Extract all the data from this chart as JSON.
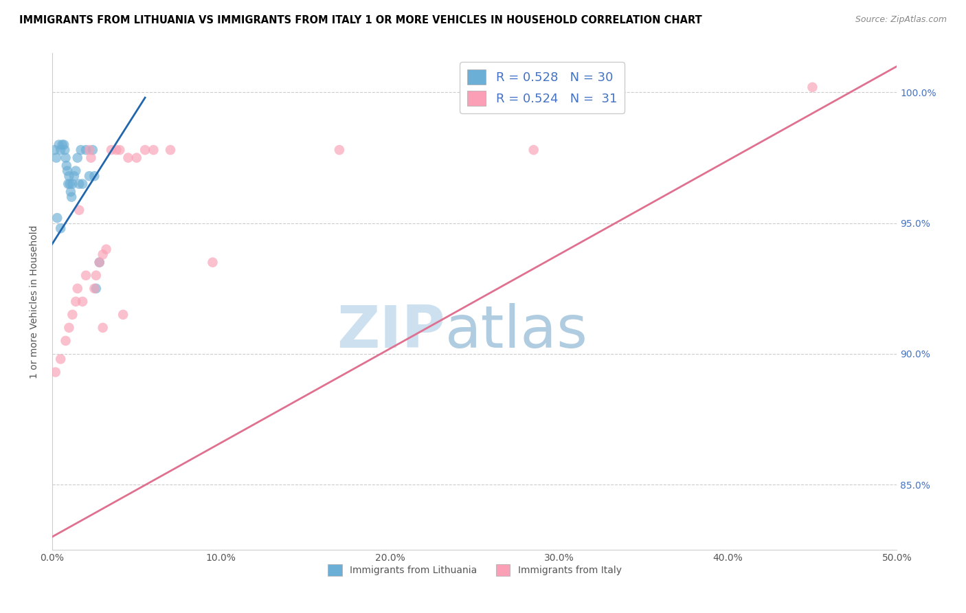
{
  "title": "IMMIGRANTS FROM LITHUANIA VS IMMIGRANTS FROM ITALY 1 OR MORE VEHICLES IN HOUSEHOLD CORRELATION CHART",
  "source": "Source: ZipAtlas.com",
  "ylabel": "1 or more Vehicles in Household",
  "xlim": [
    0.0,
    50.0
  ],
  "ylim": [
    82.5,
    101.5
  ],
  "xticklabels": [
    "0.0%",
    "10.0%",
    "20.0%",
    "30.0%",
    "40.0%",
    "50.0%"
  ],
  "xtick_vals": [
    0,
    10,
    20,
    30,
    40,
    50
  ],
  "ytick_positions": [
    85.0,
    90.0,
    95.0,
    100.0
  ],
  "ytick_labels": [
    "85.0%",
    "90.0%",
    "95.0%",
    "100.0%"
  ],
  "legend_r_blue": "R = 0.528",
  "legend_n_blue": "N = 30",
  "legend_r_pink": "R = 0.524",
  "legend_n_pink": "N = 31",
  "blue_color": "#6baed6",
  "pink_color": "#fa9fb5",
  "blue_line_color": "#2166ac",
  "pink_line_color": "#e07090",
  "watermark_zip_color": "#cce0f0",
  "watermark_atlas_color": "#b0cce0",
  "blue_line_x": [
    0.0,
    5.5
  ],
  "blue_line_y": [
    94.2,
    99.8
  ],
  "pink_line_x": [
    0.0,
    50.0
  ],
  "pink_line_y": [
    83.0,
    101.0
  ],
  "lithuania_x": [
    0.15,
    0.25,
    0.4,
    0.5,
    0.6,
    0.7,
    0.75,
    0.8,
    0.85,
    0.9,
    0.95,
    1.0,
    1.05,
    1.1,
    1.15,
    1.2,
    1.3,
    1.4,
    1.5,
    1.6,
    1.7,
    1.8,
    2.0,
    2.2,
    2.4,
    2.5,
    2.6,
    2.8,
    0.5,
    0.3
  ],
  "lithuania_y": [
    97.8,
    97.5,
    98.0,
    97.8,
    98.0,
    98.0,
    97.8,
    97.5,
    97.2,
    97.0,
    96.5,
    96.8,
    96.5,
    96.2,
    96.0,
    96.5,
    96.8,
    97.0,
    97.5,
    96.5,
    97.8,
    96.5,
    97.8,
    96.8,
    97.8,
    96.8,
    92.5,
    93.5,
    94.8,
    95.2
  ],
  "italy_x": [
    0.2,
    0.5,
    0.8,
    1.0,
    1.2,
    1.4,
    1.5,
    1.6,
    1.8,
    2.0,
    2.2,
    2.3,
    2.5,
    2.6,
    2.8,
    3.0,
    3.0,
    3.2,
    3.5,
    3.8,
    4.0,
    4.2,
    4.5,
    5.0,
    5.5,
    6.0,
    7.0,
    9.5,
    17.0,
    28.5,
    45.0
  ],
  "italy_y": [
    89.3,
    89.8,
    90.5,
    91.0,
    91.5,
    92.0,
    92.5,
    95.5,
    92.0,
    93.0,
    97.8,
    97.5,
    92.5,
    93.0,
    93.5,
    93.8,
    91.0,
    94.0,
    97.8,
    97.8,
    97.8,
    91.5,
    97.5,
    97.5,
    97.8,
    97.8,
    97.8,
    93.5,
    97.8,
    97.8,
    100.2
  ]
}
